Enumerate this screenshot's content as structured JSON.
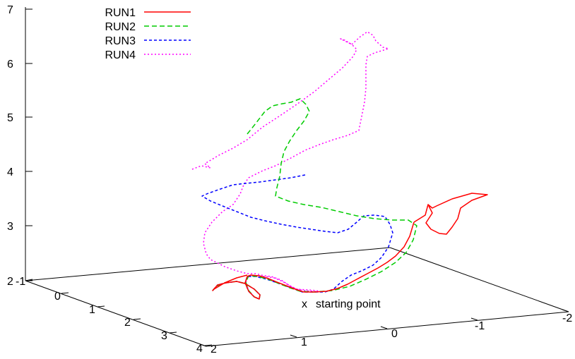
{
  "chart_data": {
    "type": "line",
    "projection": "3d",
    "title": "",
    "legend_position": "top-left",
    "grid": false,
    "z_ticks": [
      "7",
      "6",
      "5",
      "4",
      "3",
      "2"
    ],
    "y_ticks": [
      "-1",
      "0",
      "1",
      "2",
      "3",
      "4"
    ],
    "x_ticks": [
      "2",
      "1",
      "0",
      "-1",
      "-2"
    ],
    "annotation": {
      "marker": "x",
      "text": "starting point"
    },
    "series": [
      {
        "name": "RUN1",
        "color": "#ff0000",
        "dash": "solid",
        "points": [
          [
            586,
            315
          ],
          [
            580,
            335
          ],
          [
            572,
            350
          ],
          [
            560,
            363
          ],
          [
            548,
            372
          ],
          [
            535,
            380
          ],
          [
            520,
            388
          ],
          [
            505,
            396
          ],
          [
            492,
            403
          ],
          [
            478,
            409
          ],
          [
            462,
            413
          ],
          [
            445,
            414
          ],
          [
            430,
            414
          ],
          [
            418,
            410
          ],
          [
            405,
            405
          ],
          [
            392,
            400
          ],
          [
            380,
            395
          ],
          [
            367,
            391
          ],
          [
            355,
            390
          ],
          [
            350,
            392
          ],
          [
            347,
            401
          ],
          [
            352,
            413
          ],
          [
            360,
            421
          ],
          [
            367,
            424
          ],
          [
            368,
            418
          ],
          [
            360,
            410
          ],
          [
            347,
            402
          ],
          [
            335,
            399
          ],
          [
            320,
            401
          ],
          [
            308,
            404
          ],
          [
            301,
            412
          ],
          [
            303,
            410
          ],
          [
            318,
            401
          ],
          [
            335,
            394
          ],
          [
            350,
            390
          ]
        ],
        "tail": [
          [
            586,
            315
          ],
          [
            602,
            305
          ],
          [
            606,
            290
          ],
          [
            612,
            295
          ],
          [
            618,
            292
          ],
          [
            640,
            282
          ],
          [
            668,
            274
          ],
          [
            690,
            276
          ],
          [
            668,
            284
          ],
          [
            652,
            295
          ],
          [
            648,
            310
          ],
          [
            640,
            322
          ],
          [
            632,
            332
          ],
          [
            622,
            331
          ],
          [
            610,
            325
          ],
          [
            603,
            316
          ],
          [
            612,
            302
          ],
          [
            606,
            290
          ]
        ]
      },
      {
        "name": "RUN2",
        "color": "#00cc00",
        "dash": "7 4",
        "points": [
          [
            350,
            190
          ],
          [
            362,
            175
          ],
          [
            375,
            158
          ],
          [
            386,
            150
          ],
          [
            400,
            147
          ],
          [
            412,
            145
          ],
          [
            425,
            140
          ],
          [
            433,
            148
          ],
          [
            438,
            158
          ],
          [
            430,
            172
          ],
          [
            420,
            185
          ],
          [
            410,
            200
          ],
          [
            402,
            215
          ],
          [
            398,
            232
          ],
          [
            396,
            250
          ],
          [
            392,
            266
          ],
          [
            390,
            278
          ],
          [
            408,
            285
          ],
          [
            430,
            290
          ],
          [
            455,
            294
          ],
          [
            480,
            300
          ],
          [
            505,
            306
          ],
          [
            530,
            310
          ],
          [
            555,
            312
          ],
          [
            578,
            312
          ],
          [
            590,
            320
          ],
          [
            585,
            340
          ],
          [
            575,
            358
          ],
          [
            560,
            372
          ],
          [
            540,
            385
          ],
          [
            518,
            396
          ],
          [
            495,
            406
          ],
          [
            470,
            412
          ],
          [
            445,
            414
          ],
          [
            425,
            413
          ],
          [
            410,
            408
          ],
          [
            395,
            402
          ],
          [
            380,
            396
          ],
          [
            365,
            392
          ],
          [
            352,
            391
          ],
          [
            348,
            400
          ],
          [
            352,
            412
          ],
          [
            360,
            421
          ],
          [
            367,
            424
          ],
          [
            368,
            418
          ],
          [
            360,
            410
          ],
          [
            347,
            402
          ],
          [
            335,
            399
          ],
          [
            318,
            401
          ],
          [
            306,
            406
          ],
          [
            301,
            412
          ]
        ]
      },
      {
        "name": "RUN3",
        "color": "#0000ff",
        "dash": "4 3",
        "points": [
          [
            432,
            248
          ],
          [
            412,
            252
          ],
          [
            390,
            255
          ],
          [
            368,
            258
          ],
          [
            348,
            260
          ],
          [
            330,
            262
          ],
          [
            312,
            268
          ],
          [
            295,
            274
          ],
          [
            286,
            278
          ],
          [
            298,
            285
          ],
          [
            315,
            292
          ],
          [
            335,
            300
          ],
          [
            355,
            308
          ],
          [
            375,
            313
          ],
          [
            398,
            318
          ],
          [
            420,
            322
          ],
          [
            440,
            325
          ],
          [
            460,
            328
          ],
          [
            478,
            330
          ],
          [
            493,
            325
          ],
          [
            505,
            315
          ],
          [
            515,
            306
          ],
          [
            530,
            305
          ],
          [
            545,
            307
          ],
          [
            552,
            318
          ],
          [
            556,
            330
          ],
          [
            550,
            350
          ],
          [
            540,
            365
          ],
          [
            528,
            376
          ],
          [
            512,
            384
          ],
          [
            497,
            390
          ],
          [
            484,
            399
          ],
          [
            472,
            410
          ],
          [
            460,
            414
          ],
          [
            445,
            414
          ],
          [
            428,
            414
          ],
          [
            412,
            408
          ],
          [
            395,
            402
          ],
          [
            378,
            396
          ],
          [
            362,
            392
          ],
          [
            350,
            392
          ],
          [
            347,
            401
          ],
          [
            352,
            413
          ],
          [
            360,
            421
          ],
          [
            367,
            424
          ],
          [
            368,
            418
          ],
          [
            360,
            410
          ],
          [
            347,
            402
          ],
          [
            335,
            399
          ],
          [
            320,
            401
          ],
          [
            308,
            404
          ],
          [
            301,
            412
          ]
        ]
      },
      {
        "name": "RUN4",
        "color": "#ff00ff",
        "dash": "2 3",
        "points": [
          [
            498,
            63
          ],
          [
            510,
            52
          ],
          [
            520,
            45
          ],
          [
            528,
            50
          ],
          [
            532,
            58
          ],
          [
            542,
            67
          ],
          [
            550,
            69
          ],
          [
            540,
            72
          ],
          [
            530,
            75
          ],
          [
            520,
            80
          ],
          [
            518,
            92
          ],
          [
            518,
            108
          ],
          [
            518,
            125
          ],
          [
            516,
            145
          ],
          [
            512,
            165
          ],
          [
            508,
            185
          ],
          [
            492,
            192
          ],
          [
            472,
            198
          ],
          [
            452,
            205
          ],
          [
            432,
            213
          ],
          [
            410,
            225
          ],
          [
            390,
            235
          ],
          [
            372,
            242
          ],
          [
            352,
            252
          ],
          [
            345,
            262
          ],
          [
            340,
            275
          ],
          [
            330,
            290
          ],
          [
            315,
            300
          ],
          [
            300,
            315
          ],
          [
            290,
            330
          ],
          [
            288,
            345
          ],
          [
            292,
            360
          ],
          [
            298,
            368
          ],
          [
            318,
            378
          ],
          [
            335,
            384
          ],
          [
            350,
            388
          ],
          [
            362,
            388
          ],
          [
            374,
            391
          ],
          [
            384,
            392
          ],
          [
            398,
            397
          ],
          [
            410,
            405
          ],
          [
            420,
            410
          ],
          [
            432,
            412
          ],
          [
            445,
            413
          ],
          [
            455,
            414
          ],
          [
            448,
            412
          ],
          [
            435,
            411
          ],
          [
            420,
            410
          ],
          [
            410,
            405
          ],
          [
            400,
            399
          ],
          [
            388,
            394
          ],
          [
            376,
            392
          ],
          [
            362,
            392
          ],
          [
            352,
            391
          ],
          [
            348,
            400
          ],
          [
            352,
            412
          ],
          [
            360,
            421
          ],
          [
            367,
            424
          ],
          [
            368,
            418
          ],
          [
            360,
            410
          ],
          [
            347,
            402
          ],
          [
            335,
            399
          ],
          [
            320,
            401
          ],
          [
            308,
            404
          ],
          [
            301,
            412
          ]
        ],
        "head": [
          [
            272,
            240
          ],
          [
            285,
            235
          ],
          [
            298,
            238
          ],
          [
            290,
            232
          ],
          [
            310,
            220
          ],
          [
            330,
            210
          ],
          [
            350,
            198
          ],
          [
            372,
            180
          ],
          [
            395,
            165
          ],
          [
            420,
            148
          ],
          [
            445,
            130
          ],
          [
            465,
            113
          ],
          [
            485,
            96
          ],
          [
            500,
            80
          ],
          [
            505,
            70
          ],
          [
            498,
            63
          ],
          [
            488,
            57
          ],
          [
            482,
            55
          ],
          [
            498,
            63
          ]
        ]
      }
    ]
  }
}
